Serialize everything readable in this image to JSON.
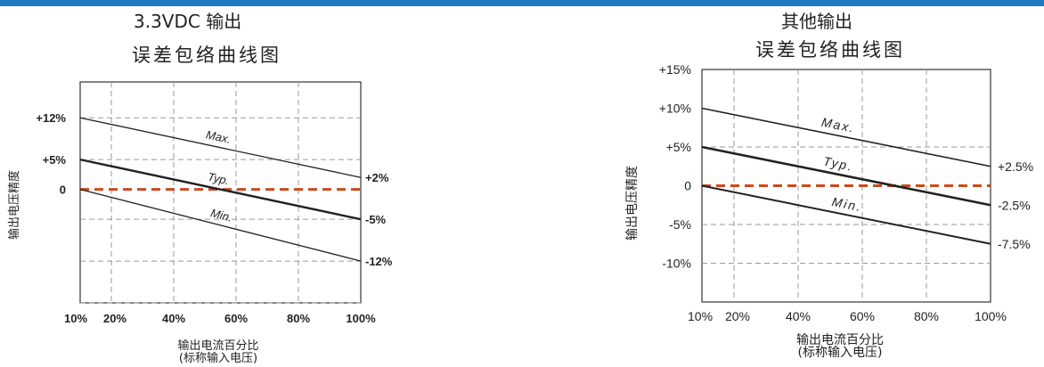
{
  "chart_data": [
    {
      "type": "line",
      "title": "3.3VDC 输出",
      "subtitle": "误差包络曲线图",
      "xlabel": "输出电流百分比",
      "xlabel2": "(标称输入电压)",
      "ylabel": "输出电压精度",
      "x_ticks": [
        10,
        20,
        40,
        60,
        80,
        100
      ],
      "x_tick_labels": [
        "10%",
        "20%",
        "40%",
        "60%",
        "80%",
        "100%"
      ],
      "y_tick_labels": [
        {
          "value": 12,
          "label": "+12%"
        },
        {
          "value": 5,
          "label": "+5%"
        },
        {
          "value": 0,
          "label": "0"
        }
      ],
      "xlim": [
        10,
        100
      ],
      "ylim": [
        -19,
        18
      ],
      "grid": true,
      "series": [
        {
          "name": "Max.",
          "x": [
            10,
            100
          ],
          "y": [
            12,
            2
          ],
          "end_label": "+2%",
          "color": "#222222"
        },
        {
          "name": "Typ.",
          "x": [
            10,
            100
          ],
          "y": [
            5,
            -5
          ],
          "end_label": "-5%",
          "color": "#222222"
        },
        {
          "name": "Min.",
          "x": [
            10,
            100
          ],
          "y": [
            0,
            -12
          ],
          "end_label": "-12%",
          "color": "#222222"
        }
      ],
      "reference_line": {
        "y": 0,
        "color": "#cc4a1c",
        "style": "dashed"
      }
    },
    {
      "type": "line",
      "title": "其他输出",
      "subtitle": "误差包络曲线图",
      "xlabel": "输出电流百分比",
      "xlabel2": "(标称输入电压)",
      "ylabel": "输出电压精度",
      "x_ticks": [
        10,
        20,
        40,
        60,
        80,
        100
      ],
      "x_tick_labels": [
        "10%",
        "20%",
        "40%",
        "60%",
        "80%",
        "100%"
      ],
      "y_tick_labels": [
        {
          "value": 15,
          "label": "+15%"
        },
        {
          "value": 10,
          "label": "+10%"
        },
        {
          "value": 5,
          "label": "+5%"
        },
        {
          "value": 0,
          "label": "0"
        },
        {
          "value": -5,
          "label": "-5%"
        },
        {
          "value": -10,
          "label": "-10%"
        }
      ],
      "xlim": [
        10,
        100
      ],
      "ylim": [
        -15,
        15
      ],
      "grid": true,
      "series": [
        {
          "name": "Max.",
          "x": [
            10,
            100
          ],
          "y": [
            10,
            2.5
          ],
          "end_label": "+2.5%",
          "color": "#222222"
        },
        {
          "name": "Typ.",
          "x": [
            10,
            100
          ],
          "y": [
            5,
            -2.5
          ],
          "end_label": "-2.5%",
          "color": "#222222"
        },
        {
          "name": "Min.",
          "x": [
            10,
            100
          ],
          "y": [
            0,
            -7.5
          ],
          "end_label": "-7.5%",
          "color": "#222222"
        }
      ],
      "reference_line": {
        "y": 0,
        "color": "#cc4a1c",
        "style": "dashed"
      }
    }
  ]
}
